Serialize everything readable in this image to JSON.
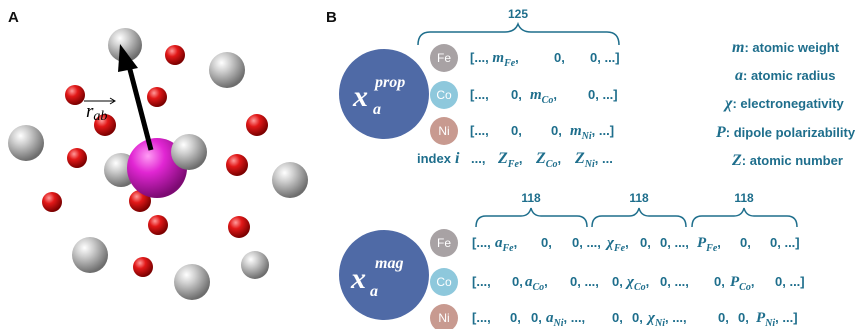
{
  "panel_a": {
    "label": "A",
    "vector_label": "r",
    "vector_sub": "ab"
  },
  "panel_b": {
    "label": "B",
    "prop_block": {
      "brace_count": "125",
      "symbol": "x",
      "symbol_sub": "a",
      "symbol_sup": "prop",
      "elements": [
        "Fe",
        "Co",
        "Ni"
      ],
      "element_colors": [
        "#a8a2a4",
        "#8ec8dc",
        "#c89a90"
      ],
      "index_label": "index",
      "index_symbol": "i"
    },
    "mag_block": {
      "brace_counts": [
        "118",
        "118",
        "118"
      ],
      "symbol": "x",
      "symbol_sub": "a",
      "symbol_sup": "mag",
      "elements": [
        "Fe",
        "Co",
        "Ni"
      ]
    },
    "legend": [
      {
        "symbol": "m",
        "text": ": atomic weight"
      },
      {
        "symbol": "a",
        "text": ": atomic radius"
      },
      {
        "symbol": "χ",
        "text": ": electronegativity"
      },
      {
        "symbol": "P",
        "text": ": dipole polarizability"
      },
      {
        "symbol": "Z",
        "text": ": atomic number"
      }
    ],
    "colors": {
      "accent": "#1e6e8c",
      "circle": "#4f6aa6",
      "magenta": "#d61fc8",
      "red": "#d80d0d",
      "grey": "#9a9a9a"
    }
  }
}
